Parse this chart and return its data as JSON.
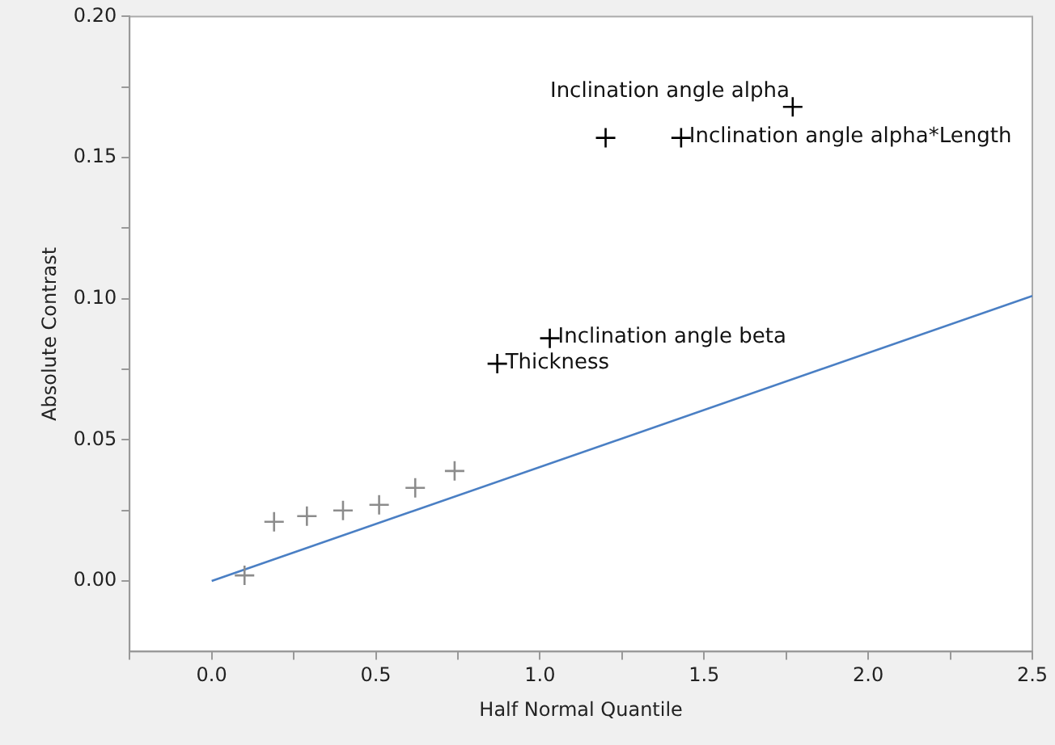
{
  "chart_data": {
    "type": "scatter",
    "xlabel": "Half Normal Quantile",
    "ylabel": "Absolute Contrast",
    "xlim": [
      -0.25,
      2.5
    ],
    "ylim": [
      -0.025,
      0.2
    ],
    "xticks": [
      {
        "value": -0.25,
        "label": null
      },
      {
        "value": 0,
        "label": "0.0"
      },
      {
        "value": 0.25,
        "label": null
      },
      {
        "value": 0.5,
        "label": "0.5"
      },
      {
        "value": 0.75,
        "label": null
      },
      {
        "value": 1,
        "label": "1.0"
      },
      {
        "value": 1.25,
        "label": null
      },
      {
        "value": 1.5,
        "label": "1.5"
      },
      {
        "value": 1.75,
        "label": null
      },
      {
        "value": 2,
        "label": "2.0"
      },
      {
        "value": 2.25,
        "label": null
      },
      {
        "value": 2.5,
        "label": "2.5"
      }
    ],
    "yticks": [
      {
        "value": 0,
        "label": "0.00"
      },
      {
        "value": 0.025,
        "label": null
      },
      {
        "value": 0.05,
        "label": "0.05"
      },
      {
        "value": 0.075,
        "label": null
      },
      {
        "value": 0.1,
        "label": "0.10"
      },
      {
        "value": 0.125,
        "label": null
      },
      {
        "value": 0.15,
        "label": "0.15"
      },
      {
        "value": 0.175,
        "label": null
      },
      {
        "value": 0.2,
        "label": "0.20"
      }
    ],
    "grid": false,
    "legend": false,
    "marker": "cross",
    "series": [
      {
        "x": [
          0.1,
          0.19,
          0.29,
          0.4,
          0.51,
          0.62,
          0.74,
          0.87,
          1.03,
          1.2,
          1.43,
          1.77
        ],
        "values": [
          0.002,
          0.021,
          0.023,
          0.025,
          0.027,
          0.033,
          0.039,
          0.077,
          0.086,
          0.157,
          0.157,
          0.168
        ],
        "colors": [
          "#8c8c8c",
          "#8c8c8c",
          "#8c8c8c",
          "#8c8c8c",
          "#8c8c8c",
          "#8c8c8c",
          "#8c8c8c",
          "#000000",
          "#000000",
          "#000000",
          "#000000",
          "#000000"
        ]
      },
      {
        "type": "line",
        "x": [
          0,
          2.5
        ],
        "values": [
          0,
          0.101
        ],
        "color": "#4a7fc4",
        "marker": "none",
        "line_style": "solid"
      }
    ],
    "annotations": [
      {
        "text": "Inclination angle alpha",
        "x": 1.77,
        "y": 0.168
      },
      {
        "text": "Inclination angle alpha*Length",
        "x": 1.43,
        "y": 0.157
      },
      {
        "text": "Inclination angle beta",
        "x": 1.03,
        "y": 0.086
      },
      {
        "text": "Thickness",
        "x": 0.87,
        "y": 0.077
      }
    ]
  }
}
